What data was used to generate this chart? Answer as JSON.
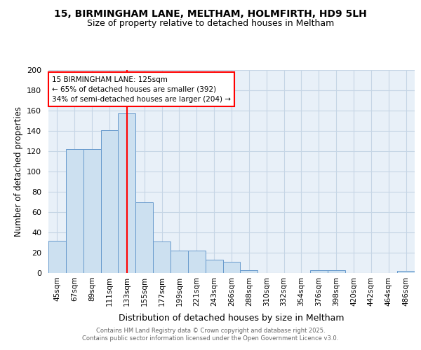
{
  "title": "15, BIRMINGHAM LANE, MELTHAM, HOLMFIRTH, HD9 5LH",
  "subtitle": "Size of property relative to detached houses in Meltham",
  "xlabel": "Distribution of detached houses by size in Meltham",
  "ylabel": "Number of detached properties",
  "bar_color": "#cce0f0",
  "bar_edge_color": "#6699cc",
  "categories": [
    "45sqm",
    "67sqm",
    "89sqm",
    "111sqm",
    "133sqm",
    "155sqm",
    "177sqm",
    "199sqm",
    "221sqm",
    "243sqm",
    "266sqm",
    "288sqm",
    "310sqm",
    "332sqm",
    "354sqm",
    "376sqm",
    "398sqm",
    "420sqm",
    "442sqm",
    "464sqm",
    "486sqm"
  ],
  "values": [
    32,
    122,
    122,
    141,
    157,
    70,
    31,
    22,
    22,
    13,
    11,
    3,
    0,
    0,
    0,
    3,
    3,
    0,
    0,
    0,
    2
  ],
  "red_line_x": 4,
  "annotation_line1": "15 BIRMINGHAM LANE: 125sqm",
  "annotation_line2": "← 65% of detached houses are smaller (392)",
  "annotation_line3": "34% of semi-detached houses are larger (204) →",
  "footer_text": "Contains HM Land Registry data © Crown copyright and database right 2025.\nContains public sector information licensed under the Open Government Licence v3.0.",
  "ylim": [
    0,
    200
  ],
  "yticks": [
    0,
    20,
    40,
    60,
    80,
    100,
    120,
    140,
    160,
    180,
    200
  ],
  "bg_color": "#ffffff",
  "plot_bg_color": "#e8f0f8",
  "grid_color": "#c5d5e5"
}
